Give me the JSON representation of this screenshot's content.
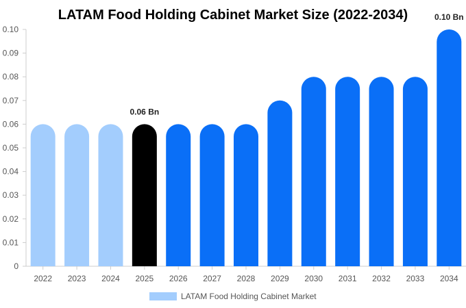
{
  "chart_data": {
    "type": "bar",
    "title": "LATAM Food Holding Cabinet Market Size (2022-2034)",
    "xlabel": "",
    "ylabel": "",
    "categories": [
      "2022",
      "2023",
      "2024",
      "2025",
      "2026",
      "2027",
      "2028",
      "2029",
      "2030",
      "2031",
      "2032",
      "2033",
      "2034"
    ],
    "series": [
      {
        "name": "LATAM Food Holding Cabinet Market",
        "values": [
          0.06,
          0.06,
          0.06,
          0.06,
          0.06,
          0.06,
          0.06,
          0.07,
          0.08,
          0.08,
          0.08,
          0.08,
          0.1
        ]
      }
    ],
    "bar_colors": [
      "#a3cdfd",
      "#a3cdfd",
      "#a3cdfd",
      "#000000",
      "#0a6ff7",
      "#0a6ff7",
      "#0a6ff7",
      "#0a6ff7",
      "#0a6ff7",
      "#0a6ff7",
      "#0a6ff7",
      "#0a6ff7",
      "#0a6ff7"
    ],
    "legend_color": "#a3cdfd",
    "ylim": [
      0,
      0.1
    ],
    "yticks": [
      "0",
      "0.01",
      "0.02",
      "0.03",
      "0.04",
      "0.05",
      "0.06",
      "0.07",
      "0.08",
      "0.09",
      "0.10"
    ],
    "data_labels": [
      {
        "index": 3,
        "text": "0.06 Bn"
      },
      {
        "index": 12,
        "text": "0.10 Bn"
      }
    ],
    "grid": false,
    "legend_position": "bottom"
  }
}
